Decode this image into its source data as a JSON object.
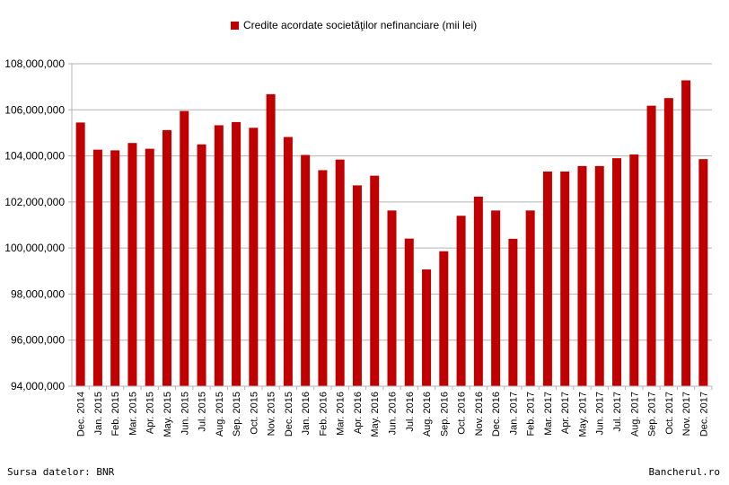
{
  "chart_data": {
    "type": "bar",
    "legend": "Credite acordate societăţilor nefinanciare (mii lei)",
    "bar_color": "#c00000",
    "grid": true,
    "ylim": [
      94000000,
      108000000
    ],
    "y_ticks": [
      "94,000,000",
      "96,000,000",
      "98,000,000",
      "100,000,000",
      "102,000,000",
      "104,000,000",
      "106,000,000",
      "108,000,000"
    ],
    "categories": [
      "Dec. 2014",
      "Jan. 2015",
      "Feb. 2015",
      "Mar. 2015",
      "Apr. 2015",
      "May. 2015",
      "Jun. 2015",
      "Jul. 2015",
      "Aug. 2015",
      "Sep. 2015",
      "Oct. 2015",
      "Nov. 2015",
      "Dec. 2015",
      "Jan. 2016",
      "Feb. 2016",
      "Mar. 2016",
      "Apr. 2016",
      "May. 2016",
      "Jun. 2016",
      "Jul. 2016",
      "Aug. 2016",
      "Sep. 2016",
      "Oct. 2016",
      "Nov. 2016",
      "Dec. 2016",
      "Jan. 2017",
      "Feb. 2017",
      "Mar. 2017",
      "Apr. 2017",
      "May. 2017",
      "Jun. 2017",
      "Jul. 2017",
      "Aug. 2017",
      "Sep. 2017",
      "Oct. 2017",
      "Nov. 2017",
      "Dec. 2017"
    ],
    "values": [
      105450000,
      104270000,
      104240000,
      104560000,
      104310000,
      105120000,
      105950000,
      104500000,
      105330000,
      105470000,
      105220000,
      106680000,
      104820000,
      104040000,
      103380000,
      103840000,
      102720000,
      103140000,
      101630000,
      100410000,
      99070000,
      99860000,
      101400000,
      102230000,
      101630000,
      100400000,
      101630000,
      103320000,
      103320000,
      103560000,
      103560000,
      103900000,
      104060000,
      106180000,
      106510000,
      107280000,
      103860000
    ]
  },
  "footer": {
    "source": "Sursa datelor: BNR",
    "brand": "Bancherul.ro"
  }
}
